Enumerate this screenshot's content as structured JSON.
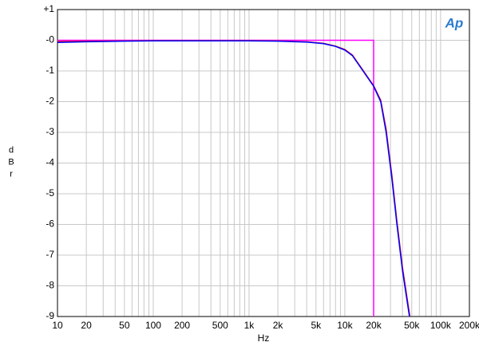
{
  "chart_data": {
    "type": "line",
    "x_label": "Hz",
    "y_label": "dBr",
    "logo": "Ap",
    "xscale": "log",
    "grid": true,
    "xlim": [
      10,
      200000
    ],
    "ylim": [
      -9,
      1
    ],
    "xticks": [
      10,
      20,
      50,
      100,
      200,
      500,
      {
        "value": 1000,
        "label": "1k"
      },
      {
        "value": 2000,
        "label": "2k"
      },
      {
        "value": 5000,
        "label": "5k"
      },
      {
        "value": 10000,
        "label": "10k"
      },
      {
        "value": 20000,
        "label": "20k"
      },
      {
        "value": 50000,
        "label": "50k"
      },
      {
        "value": 100000,
        "label": "100k"
      },
      {
        "value": 200000,
        "label": "200k"
      }
    ],
    "x_minor_ticks": [
      30,
      40,
      60,
      70,
      80,
      90,
      300,
      400,
      600,
      700,
      800,
      900,
      3000,
      4000,
      6000,
      7000,
      8000,
      9000,
      30000,
      40000,
      60000,
      70000,
      80000,
      90000
    ],
    "yticks": [
      {
        "value": 1,
        "label": "+1"
      },
      {
        "value": 0,
        "label": "-0"
      },
      -1,
      -2,
      -3,
      -4,
      -5,
      -6,
      -7,
      -8,
      -9
    ],
    "series": [
      {
        "color": "#0000ff",
        "x": [
          10,
          20,
          50,
          100,
          200,
          500,
          1000,
          2000,
          4000,
          6000,
          8000,
          10000,
          12000,
          15500,
          20000,
          23700,
          27000,
          31000,
          35000,
          40000,
          47300
        ],
        "values": [
          -0.07,
          -0.05,
          -0.03,
          -0.02,
          -0.02,
          -0.02,
          -0.02,
          -0.03,
          -0.06,
          -0.11,
          -0.2,
          -0.32,
          -0.5,
          -1.0,
          -1.5,
          -2.0,
          -3.0,
          -4.5,
          -6.0,
          -7.5,
          -9.0
        ]
      },
      {
        "color": "#e0102a",
        "x": [
          10,
          20,
          50,
          100,
          200,
          500,
          1000,
          2000,
          4000,
          6000,
          8000,
          10000,
          12000,
          15500,
          20000,
          23700,
          27000,
          31000,
          35000,
          40000,
          47800
        ],
        "values": [
          -0.04,
          -0.03,
          -0.02,
          -0.01,
          -0.01,
          -0.01,
          -0.01,
          -0.02,
          -0.05,
          -0.1,
          -0.19,
          -0.3,
          -0.48,
          -0.98,
          -1.48,
          -1.95,
          -2.9,
          -4.4,
          -5.9,
          -7.4,
          -9.0
        ]
      },
      {
        "color": "#ff00ff",
        "x": [
          10,
          20000,
          20000
        ],
        "values": [
          0,
          0,
          -9
        ]
      }
    ]
  }
}
